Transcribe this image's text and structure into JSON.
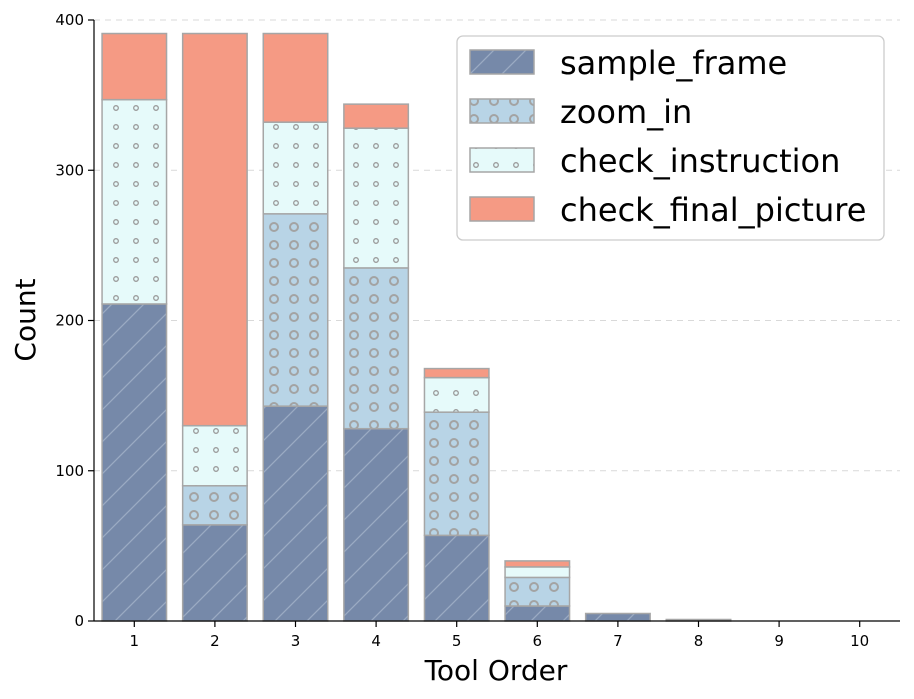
{
  "chart_data": {
    "type": "bar",
    "stacked": true,
    "categories": [
      "1",
      "2",
      "3",
      "4",
      "5",
      "6",
      "7",
      "8",
      "9",
      "10"
    ],
    "series": [
      {
        "name": "sample_frame",
        "color": "#7689a9",
        "pattern": "diagonal-hatch",
        "values": [
          211,
          64,
          143,
          128,
          57,
          10,
          5,
          1,
          0,
          0
        ]
      },
      {
        "name": "zoom_in",
        "color": "#b8d4e6",
        "pattern": "circles",
        "values": [
          0,
          26,
          128,
          107,
          82,
          19,
          0,
          0,
          0,
          0
        ]
      },
      {
        "name": "check_instruction",
        "color": "#e6fafa",
        "pattern": "dots",
        "values": [
          136,
          40,
          61,
          93,
          23,
          7,
          0,
          0,
          0,
          0
        ]
      },
      {
        "name": "check_final_picture",
        "color": "#f59a84",
        "pattern": "none",
        "values": [
          44,
          261,
          59,
          16,
          6,
          4,
          0,
          0,
          0,
          0
        ]
      }
    ],
    "xlabel": "Tool Order",
    "ylabel": "Count",
    "ylim": [
      0,
      400
    ],
    "yticks": [
      "0",
      "100",
      "200",
      "300",
      "400"
    ],
    "grid": "horizontal-dashed",
    "legend_position": "top-right"
  }
}
